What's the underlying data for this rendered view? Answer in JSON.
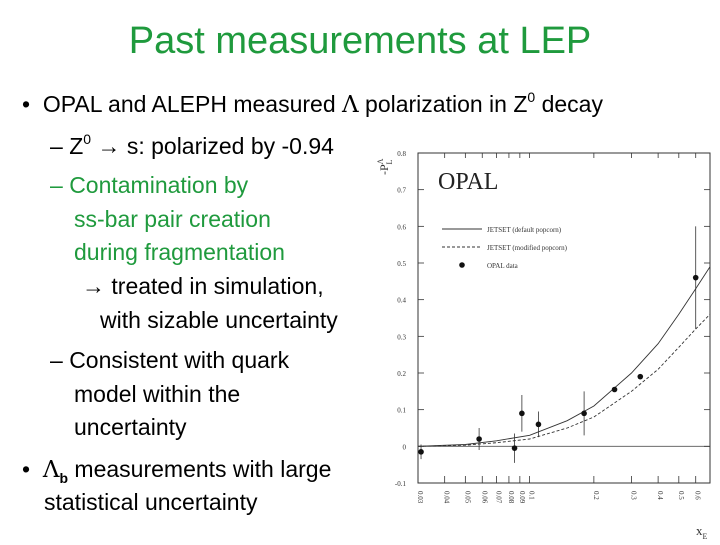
{
  "slide": {
    "title": "Past measurements at LEP",
    "bullet_symbol": "•",
    "dash_symbol": "–",
    "arrow_symbol": "→",
    "b1_text_a": "OPAL and ALEPH measured ",
    "lambda": "Λ",
    "b1_text_b": " polarization in Z",
    "sup_zero": "0",
    "b1_text_c": " decay",
    "s1_text_a": "Z",
    "s1_text_b": " s: polarized by -0.94",
    "s2_line1": "Contamination by",
    "s2_line2": "ss-bar pair creation",
    "s2_line3": "during fragmentation",
    "s2_line4": " treated in simulation,",
    "s2_line5": "with sizable uncertainty",
    "s3_line1": "Consistent with quark",
    "s3_line2": "model within the",
    "s3_line3": "uncertainty",
    "b2_sub": "b",
    "b2_text_a": " measurements with large",
    "b2_text_b": "statistical uncertainty"
  },
  "chart_data": {
    "type": "scatter",
    "title": "OPAL",
    "xlabel": "x",
    "xlabel_sub": "E",
    "ylabel": "-P",
    "ylabel_sup": "Λ",
    "ylabel_sub": "L",
    "xlim": [
      0.03,
      0.7
    ],
    "ylim": [
      -0.1,
      0.8
    ],
    "x_scale": "log",
    "xticks": [
      0.03,
      0.04,
      0.05,
      0.06,
      0.07,
      0.08,
      0.09,
      0.1,
      0.2,
      0.3,
      0.4,
      0.5,
      0.6
    ],
    "xtick_labels": [
      "0.03",
      "0.04",
      "0.05",
      "0.06",
      "0.07",
      "0.08",
      "0.09",
      "0.1",
      "0.2",
      "0.3",
      "0.4",
      "0.5",
      "0.6"
    ],
    "yticks": [
      -0.1,
      0,
      0.1,
      0.2,
      0.3,
      0.4,
      0.5,
      0.6,
      0.7,
      0.8
    ],
    "ytick_labels": [
      "-0.1",
      "0",
      "0.1",
      "0.2",
      "0.3",
      "0.4",
      "0.5",
      "0.6",
      "0.7",
      "0.8"
    ],
    "legend": [
      "JETSET (default popcorn)",
      "JETSET (modified popcorn)",
      "OPAL data"
    ],
    "legend_position": "top-left",
    "series": [
      {
        "name": "JETSET (default popcorn)",
        "style": "solid",
        "x": [
          0.03,
          0.05,
          0.07,
          0.1,
          0.15,
          0.2,
          0.3,
          0.4,
          0.5,
          0.6,
          0.7
        ],
        "y": [
          0.0,
          0.005,
          0.015,
          0.03,
          0.07,
          0.11,
          0.2,
          0.28,
          0.36,
          0.43,
          0.49
        ]
      },
      {
        "name": "JETSET (modified popcorn)",
        "style": "dashed",
        "x": [
          0.03,
          0.05,
          0.07,
          0.1,
          0.15,
          0.2,
          0.3,
          0.4,
          0.5,
          0.6,
          0.7
        ],
        "y": [
          0.0,
          0.003,
          0.01,
          0.02,
          0.05,
          0.08,
          0.15,
          0.21,
          0.27,
          0.32,
          0.36
        ]
      },
      {
        "name": "OPAL data",
        "style": "points",
        "points": [
          {
            "x": 0.031,
            "y": -0.015,
            "err": 0.02
          },
          {
            "x": 0.058,
            "y": 0.02,
            "err": 0.03
          },
          {
            "x": 0.085,
            "y": -0.005,
            "err": 0.04
          },
          {
            "x": 0.092,
            "y": 0.09,
            "err": 0.05
          },
          {
            "x": 0.11,
            "y": 0.06,
            "err": 0.035
          },
          {
            "x": 0.18,
            "y": 0.09,
            "err": 0.06
          },
          {
            "x": 0.25,
            "y": 0.155,
            "err": 0.0
          },
          {
            "x": 0.33,
            "y": 0.19,
            "err": 0.0
          },
          {
            "x": 0.6,
            "y": 0.46,
            "err": 0.14
          }
        ]
      }
    ]
  }
}
